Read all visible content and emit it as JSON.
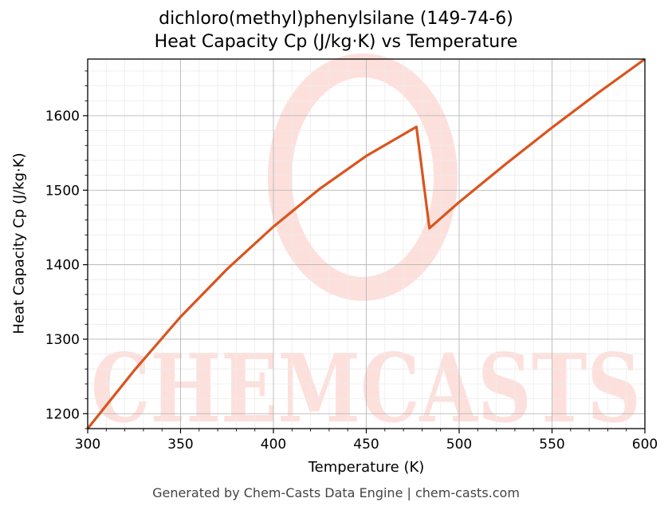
{
  "header": {
    "title_line1": "dichloro(methyl)phenylsilane (149-74-6)",
    "title_line2": "Heat Capacity Cp (J/kg·K) vs Temperature"
  },
  "footer": {
    "text": "Generated by Chem-Casts Data Engine | chem-casts.com"
  },
  "watermark": {
    "text": "CHEMCASTS",
    "color": "#fde0dc"
  },
  "chart_data": {
    "type": "line",
    "title": "dichloro(methyl)phenylsilane (149-74-6)\nHeat Capacity Cp (J/kg·K) vs Temperature",
    "xlabel": "Temperature (K)",
    "ylabel": "Heat Capacity Cp (J/kg·K)",
    "xlim": [
      300,
      600
    ],
    "ylim": [
      1180,
      1676
    ],
    "xticks": [
      300,
      350,
      400,
      450,
      500,
      550,
      600
    ],
    "yticks": [
      1200,
      1300,
      1400,
      1500,
      1600
    ],
    "grid": true,
    "legend": "none",
    "series": [
      {
        "color": "#d9541e",
        "x": [
          300,
          325,
          350,
          375,
          400,
          425,
          450,
          477,
          484,
          500,
          525,
          550,
          575,
          600
        ],
        "y": [
          1180,
          1258,
          1330,
          1394,
          1451,
          1502,
          1546,
          1585,
          1449,
          1484,
          1535,
          1584,
          1631,
          1676
        ]
      }
    ]
  }
}
